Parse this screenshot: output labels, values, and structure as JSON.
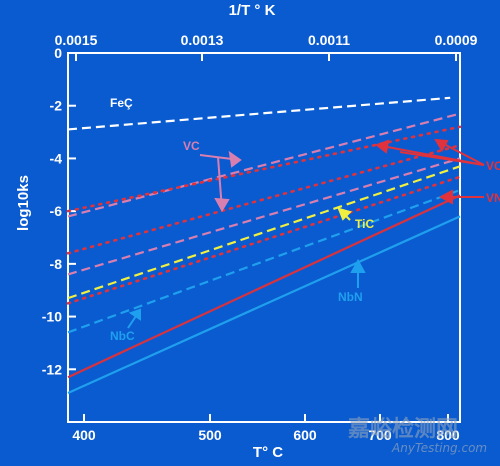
{
  "chart_data": {
    "type": "line",
    "title": "",
    "xlabel": "T°  C",
    "ylabel": "log10ks",
    "top_axis_label": "1/T °  K",
    "xlim": [
      400,
      800
    ],
    "ylim": [
      -14,
      0
    ],
    "x_ticks": [
      "400",
      "500",
      "600",
      "700",
      "800"
    ],
    "top_ticks": [
      "0.0015",
      "0.0013",
      "0.0011",
      "0.0009"
    ],
    "y_ticks": [
      "0",
      "-2",
      "-4",
      "-6",
      "-8",
      "-10",
      "-12"
    ],
    "series": [
      {
        "name": "FeC",
        "style": "dashed",
        "color": "#ffffff",
        "points": [
          [
            400,
            -2.9
          ],
          [
            790,
            -1.7
          ]
        ]
      },
      {
        "name": "VC",
        "style": "dashed",
        "color": "#d97fb0",
        "points": [
          [
            400,
            -6.2
          ],
          [
            800,
            -2.3
          ]
        ]
      },
      {
        "name": "",
        "style": "dotted",
        "color": "#e0323c",
        "points": [
          [
            400,
            -6.0
          ],
          [
            800,
            -2.8
          ]
        ]
      },
      {
        "name": "",
        "style": "dotted",
        "color": "#e0323c",
        "points": [
          [
            400,
            -7.6
          ],
          [
            800,
            -3.5
          ]
        ]
      },
      {
        "name": "",
        "style": "dashed",
        "color": "#d97fb0",
        "points": [
          [
            400,
            -8.4
          ],
          [
            800,
            -4.0
          ]
        ]
      },
      {
        "name": "",
        "style": "dotted",
        "color": "#e0323c",
        "points": [
          [
            400,
            -9.5
          ],
          [
            800,
            -4.7
          ]
        ]
      },
      {
        "name": "TiC",
        "style": "dashed",
        "color": "#f0f040",
        "points": [
          [
            400,
            -9.3
          ],
          [
            800,
            -4.3
          ]
        ]
      },
      {
        "name": "NbC",
        "style": "dashed",
        "color": "#1fa0ee",
        "points": [
          [
            400,
            -10.6
          ],
          [
            800,
            -5.2
          ]
        ]
      },
      {
        "name": "VN",
        "style": "solid",
        "color": "#d8323e",
        "points": [
          [
            400,
            -12.3
          ],
          [
            800,
            -5.4
          ]
        ]
      },
      {
        "name": "NbN",
        "style": "solid",
        "color": "#1fa0ee",
        "points": [
          [
            400,
            -12.9
          ],
          [
            800,
            -6.2
          ]
        ]
      }
    ],
    "annotations": [
      {
        "text": "FeÇ",
        "color": "#ffffff"
      },
      {
        "text": "VC",
        "color": "#d97fb0"
      },
      {
        "text": "TiC",
        "color": "#f0f040"
      },
      {
        "text": "NbC",
        "color": "#1fa0ee"
      },
      {
        "text": "NbN",
        "color": "#1fa0ee"
      },
      {
        "text": "VC",
        "color": "#e0323c"
      },
      {
        "text": "VN",
        "color": "#e0323c"
      }
    ],
    "grid": false,
    "background": "#0a5bd0"
  },
  "watermark": {
    "text": "嘉峪检测网",
    "subtext": "AnyTesting.com"
  }
}
